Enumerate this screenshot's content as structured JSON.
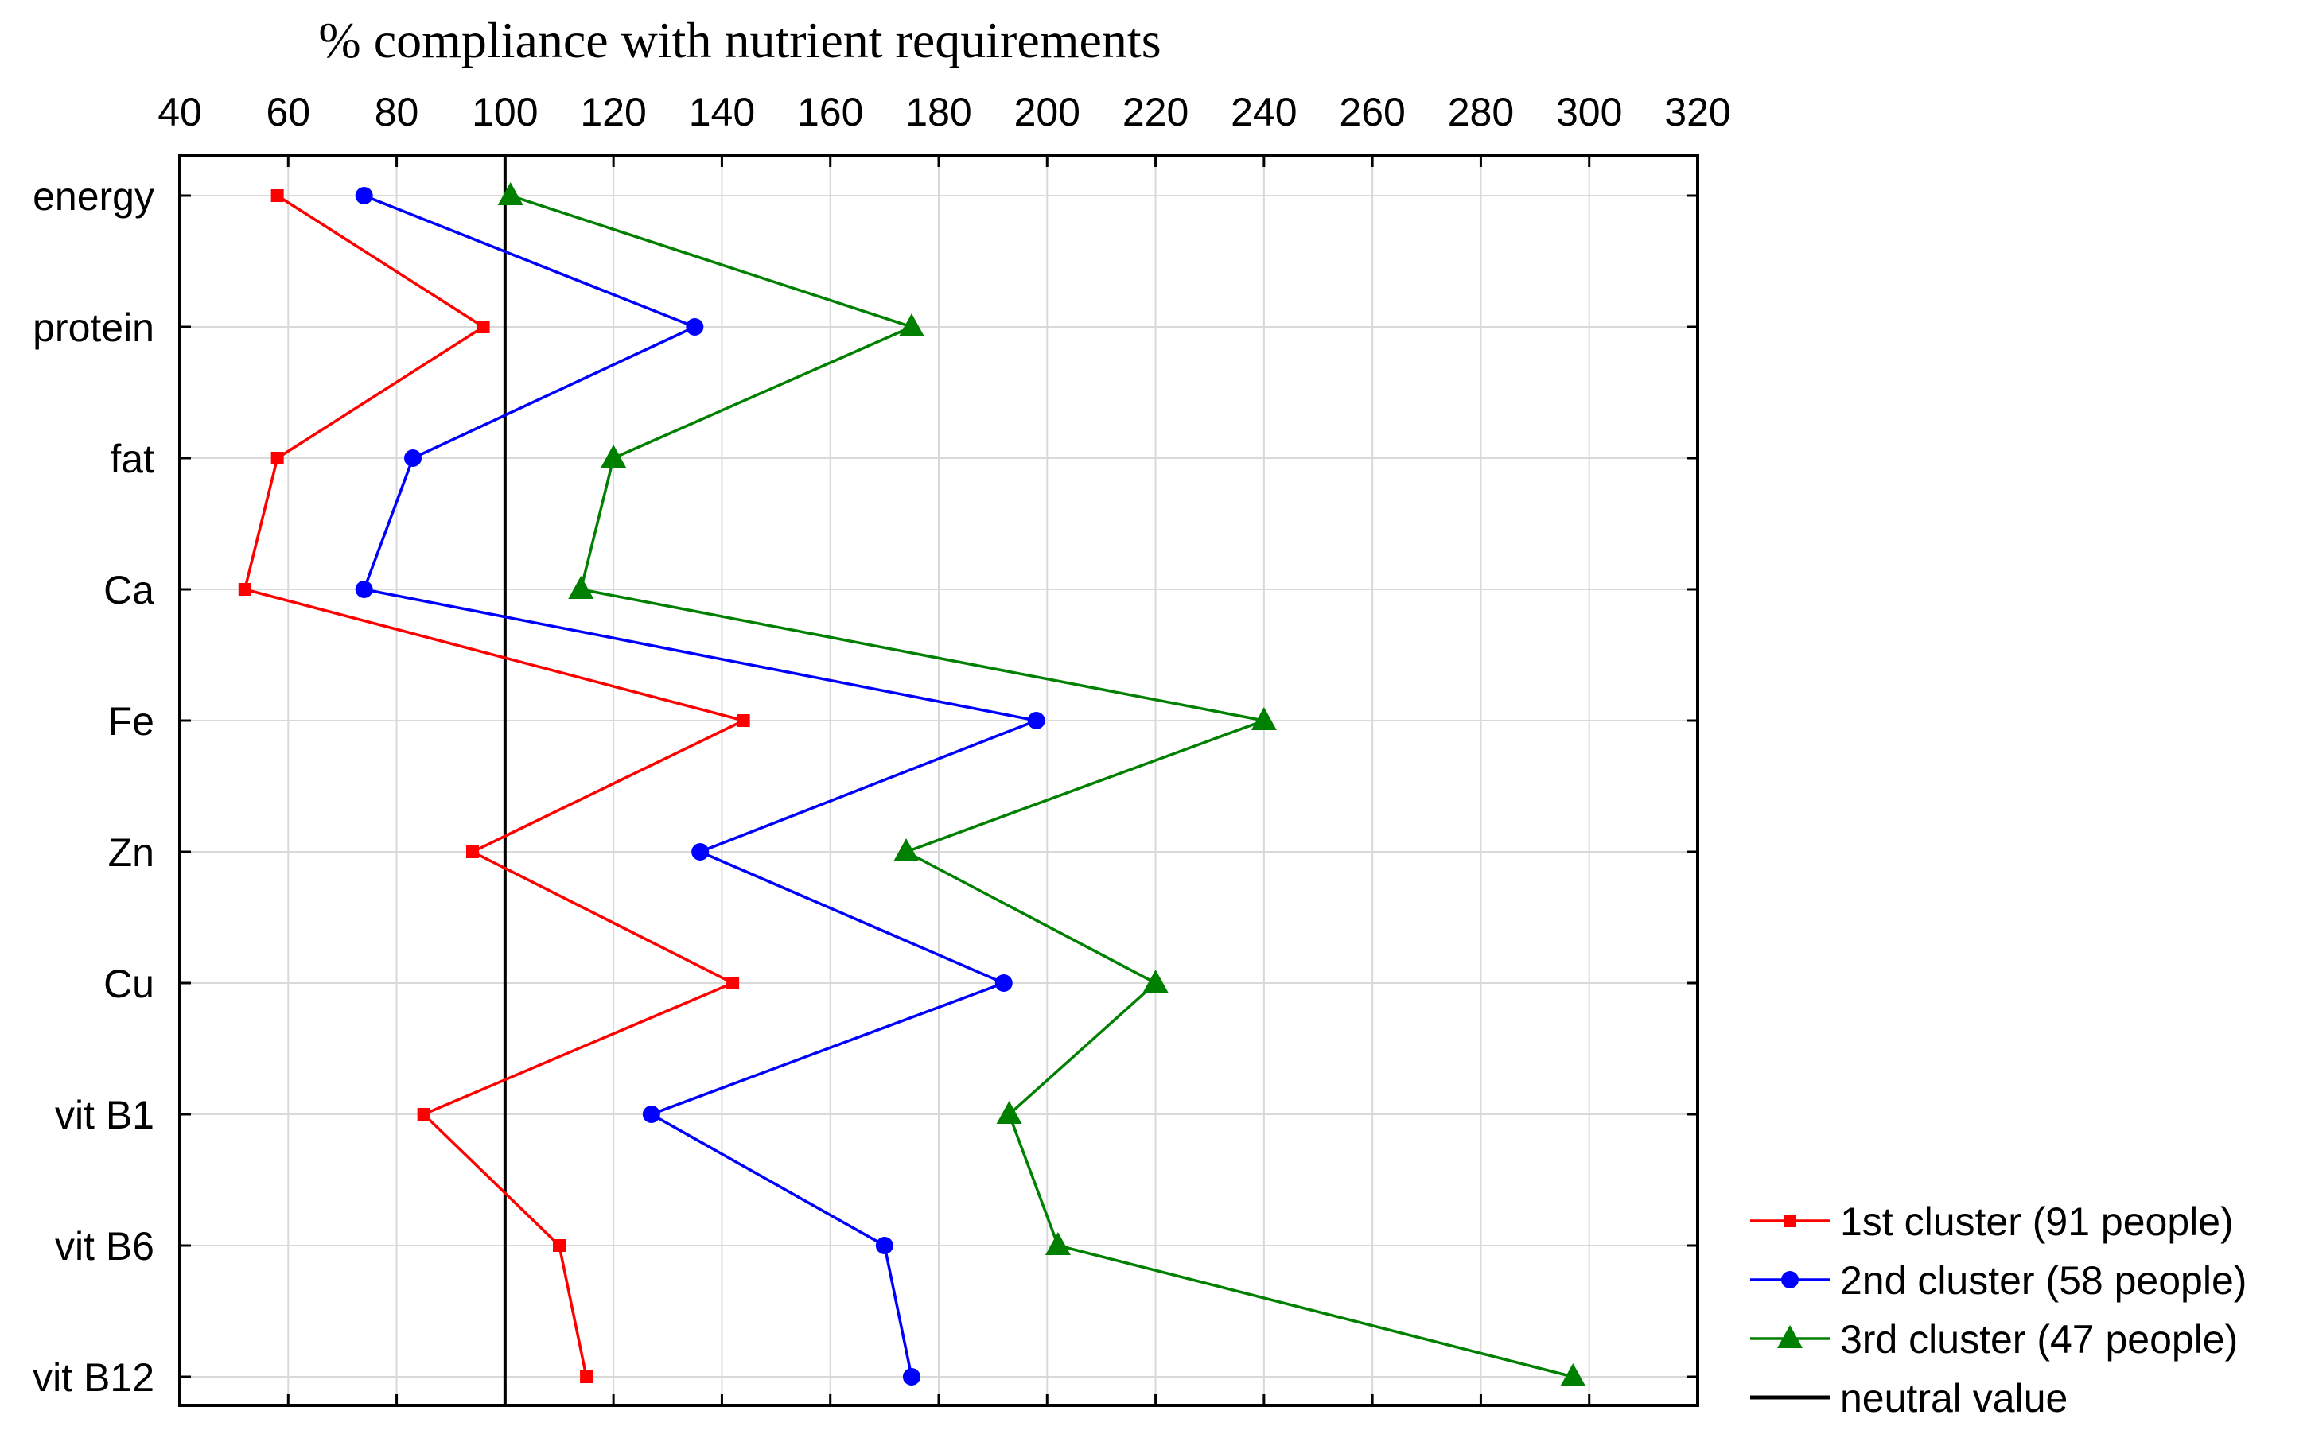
{
  "chart_data": {
    "type": "line",
    "title": "% compliance with nutrient requirements",
    "xlim": [
      40,
      320
    ],
    "xticks": [
      40,
      60,
      80,
      100,
      120,
      140,
      160,
      180,
      200,
      220,
      240,
      260,
      280,
      300,
      320
    ],
    "x_axis_position": "top",
    "grid": true,
    "categories": [
      "energy",
      "protein",
      "fat",
      "Ca",
      "Fe",
      "Zn",
      "Cu",
      "vit B1",
      "vit B6",
      "vit B12"
    ],
    "series": [
      {
        "name": "1st cluster (91 people)",
        "color": "#ff0000",
        "marker": "square",
        "values": [
          58,
          96,
          58,
          52,
          144,
          94,
          142,
          85,
          110,
          115
        ]
      },
      {
        "name": "2nd cluster (58 people)",
        "color": "#0000ff",
        "marker": "circle",
        "values": [
          74,
          135,
          83,
          74,
          198,
          136,
          192,
          127,
          170,
          175
        ]
      },
      {
        "name": "3rd cluster (47 people)",
        "color": "#008000",
        "marker": "triangle",
        "values": [
          101,
          175,
          120,
          114,
          240,
          174,
          220,
          193,
          202,
          297
        ]
      }
    ],
    "reference_line": {
      "name": "neutral value",
      "value": 100,
      "color": "#000000"
    },
    "legend_position": "bottom-right"
  }
}
